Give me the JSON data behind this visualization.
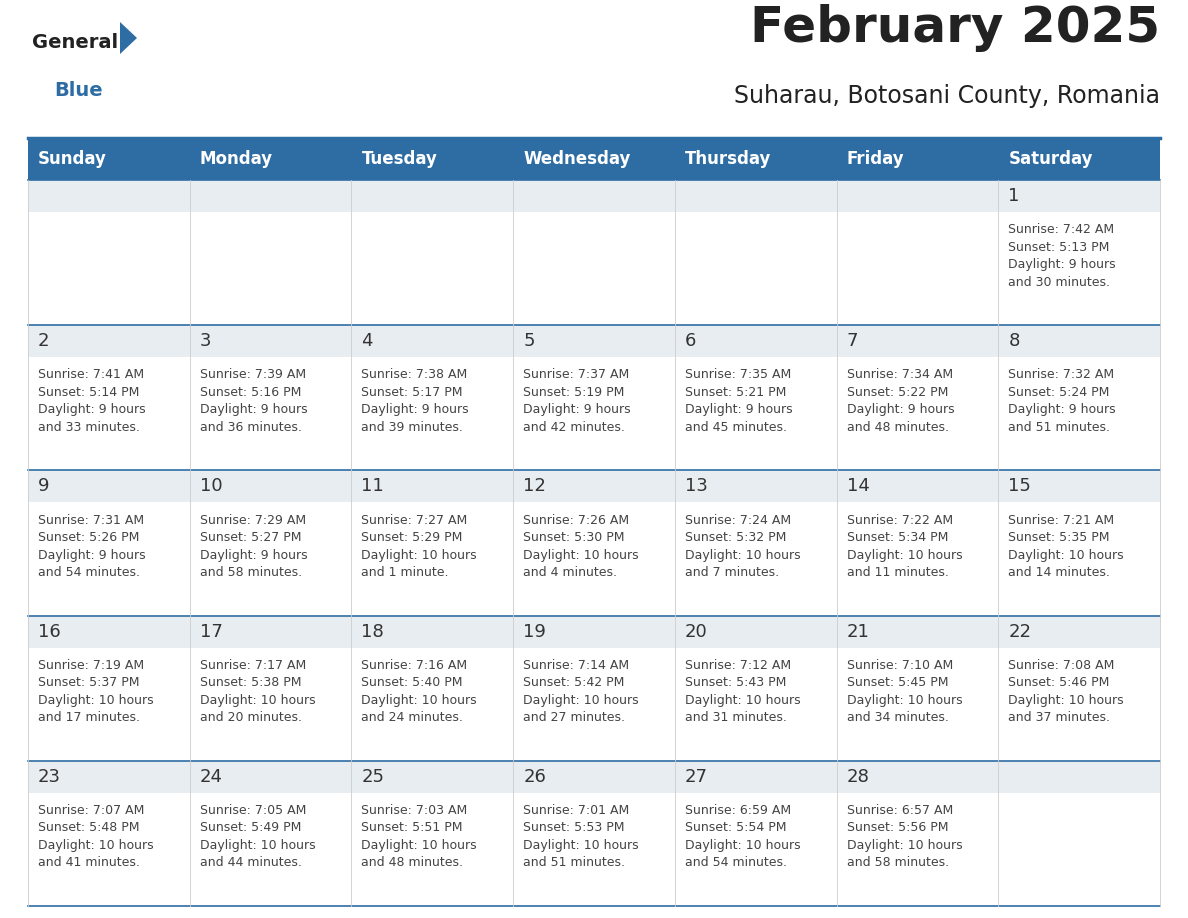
{
  "title": "February 2025",
  "subtitle": "Suharau, Botosani County, Romania",
  "header_bg_color": "#2e6da4",
  "header_text_color": "#ffffff",
  "cell_top_bg": "#e8edf2",
  "cell_body_bg": "#ffffff",
  "grid_line_color": "#2e6da4",
  "grid_line_minor": "#cccccc",
  "day_headers": [
    "Sunday",
    "Monday",
    "Tuesday",
    "Wednesday",
    "Thursday",
    "Friday",
    "Saturday"
  ],
  "days_data": [
    {
      "day": 1,
      "col": 6,
      "row": 0,
      "sunrise": "7:42 AM",
      "sunset": "5:13 PM",
      "daylight": "9 hours and 30 minutes."
    },
    {
      "day": 2,
      "col": 0,
      "row": 1,
      "sunrise": "7:41 AM",
      "sunset": "5:14 PM",
      "daylight": "9 hours and 33 minutes."
    },
    {
      "day": 3,
      "col": 1,
      "row": 1,
      "sunrise": "7:39 AM",
      "sunset": "5:16 PM",
      "daylight": "9 hours and 36 minutes."
    },
    {
      "day": 4,
      "col": 2,
      "row": 1,
      "sunrise": "7:38 AM",
      "sunset": "5:17 PM",
      "daylight": "9 hours and 39 minutes."
    },
    {
      "day": 5,
      "col": 3,
      "row": 1,
      "sunrise": "7:37 AM",
      "sunset": "5:19 PM",
      "daylight": "9 hours and 42 minutes."
    },
    {
      "day": 6,
      "col": 4,
      "row": 1,
      "sunrise": "7:35 AM",
      "sunset": "5:21 PM",
      "daylight": "9 hours and 45 minutes."
    },
    {
      "day": 7,
      "col": 5,
      "row": 1,
      "sunrise": "7:34 AM",
      "sunset": "5:22 PM",
      "daylight": "9 hours and 48 minutes."
    },
    {
      "day": 8,
      "col": 6,
      "row": 1,
      "sunrise": "7:32 AM",
      "sunset": "5:24 PM",
      "daylight": "9 hours and 51 minutes."
    },
    {
      "day": 9,
      "col": 0,
      "row": 2,
      "sunrise": "7:31 AM",
      "sunset": "5:26 PM",
      "daylight": "9 hours and 54 minutes."
    },
    {
      "day": 10,
      "col": 1,
      "row": 2,
      "sunrise": "7:29 AM",
      "sunset": "5:27 PM",
      "daylight": "9 hours and 58 minutes."
    },
    {
      "day": 11,
      "col": 2,
      "row": 2,
      "sunrise": "7:27 AM",
      "sunset": "5:29 PM",
      "daylight": "10 hours and 1 minute."
    },
    {
      "day": 12,
      "col": 3,
      "row": 2,
      "sunrise": "7:26 AM",
      "sunset": "5:30 PM",
      "daylight": "10 hours and 4 minutes."
    },
    {
      "day": 13,
      "col": 4,
      "row": 2,
      "sunrise": "7:24 AM",
      "sunset": "5:32 PM",
      "daylight": "10 hours and 7 minutes."
    },
    {
      "day": 14,
      "col": 5,
      "row": 2,
      "sunrise": "7:22 AM",
      "sunset": "5:34 PM",
      "daylight": "10 hours and 11 minutes."
    },
    {
      "day": 15,
      "col": 6,
      "row": 2,
      "sunrise": "7:21 AM",
      "sunset": "5:35 PM",
      "daylight": "10 hours and 14 minutes."
    },
    {
      "day": 16,
      "col": 0,
      "row": 3,
      "sunrise": "7:19 AM",
      "sunset": "5:37 PM",
      "daylight": "10 hours and 17 minutes."
    },
    {
      "day": 17,
      "col": 1,
      "row": 3,
      "sunrise": "7:17 AM",
      "sunset": "5:38 PM",
      "daylight": "10 hours and 20 minutes."
    },
    {
      "day": 18,
      "col": 2,
      "row": 3,
      "sunrise": "7:16 AM",
      "sunset": "5:40 PM",
      "daylight": "10 hours and 24 minutes."
    },
    {
      "day": 19,
      "col": 3,
      "row": 3,
      "sunrise": "7:14 AM",
      "sunset": "5:42 PM",
      "daylight": "10 hours and 27 minutes."
    },
    {
      "day": 20,
      "col": 4,
      "row": 3,
      "sunrise": "7:12 AM",
      "sunset": "5:43 PM",
      "daylight": "10 hours and 31 minutes."
    },
    {
      "day": 21,
      "col": 5,
      "row": 3,
      "sunrise": "7:10 AM",
      "sunset": "5:45 PM",
      "daylight": "10 hours and 34 minutes."
    },
    {
      "day": 22,
      "col": 6,
      "row": 3,
      "sunrise": "7:08 AM",
      "sunset": "5:46 PM",
      "daylight": "10 hours and 37 minutes."
    },
    {
      "day": 23,
      "col": 0,
      "row": 4,
      "sunrise": "7:07 AM",
      "sunset": "5:48 PM",
      "daylight": "10 hours and 41 minutes."
    },
    {
      "day": 24,
      "col": 1,
      "row": 4,
      "sunrise": "7:05 AM",
      "sunset": "5:49 PM",
      "daylight": "10 hours and 44 minutes."
    },
    {
      "day": 25,
      "col": 2,
      "row": 4,
      "sunrise": "7:03 AM",
      "sunset": "5:51 PM",
      "daylight": "10 hours and 48 minutes."
    },
    {
      "day": 26,
      "col": 3,
      "row": 4,
      "sunrise": "7:01 AM",
      "sunset": "5:53 PM",
      "daylight": "10 hours and 51 minutes."
    },
    {
      "day": 27,
      "col": 4,
      "row": 4,
      "sunrise": "6:59 AM",
      "sunset": "5:54 PM",
      "daylight": "10 hours and 54 minutes."
    },
    {
      "day": 28,
      "col": 5,
      "row": 4,
      "sunrise": "6:57 AM",
      "sunset": "5:56 PM",
      "daylight": "10 hours and 58 minutes."
    }
  ],
  "num_rows": 5,
  "num_cols": 7,
  "text_color_dark": "#222222",
  "cell_text_color": "#444444",
  "day_number_color": "#333333",
  "title_fontsize": 36,
  "subtitle_fontsize": 17,
  "header_fontsize": 12,
  "day_num_fontsize": 13,
  "cell_text_fontsize": 9
}
